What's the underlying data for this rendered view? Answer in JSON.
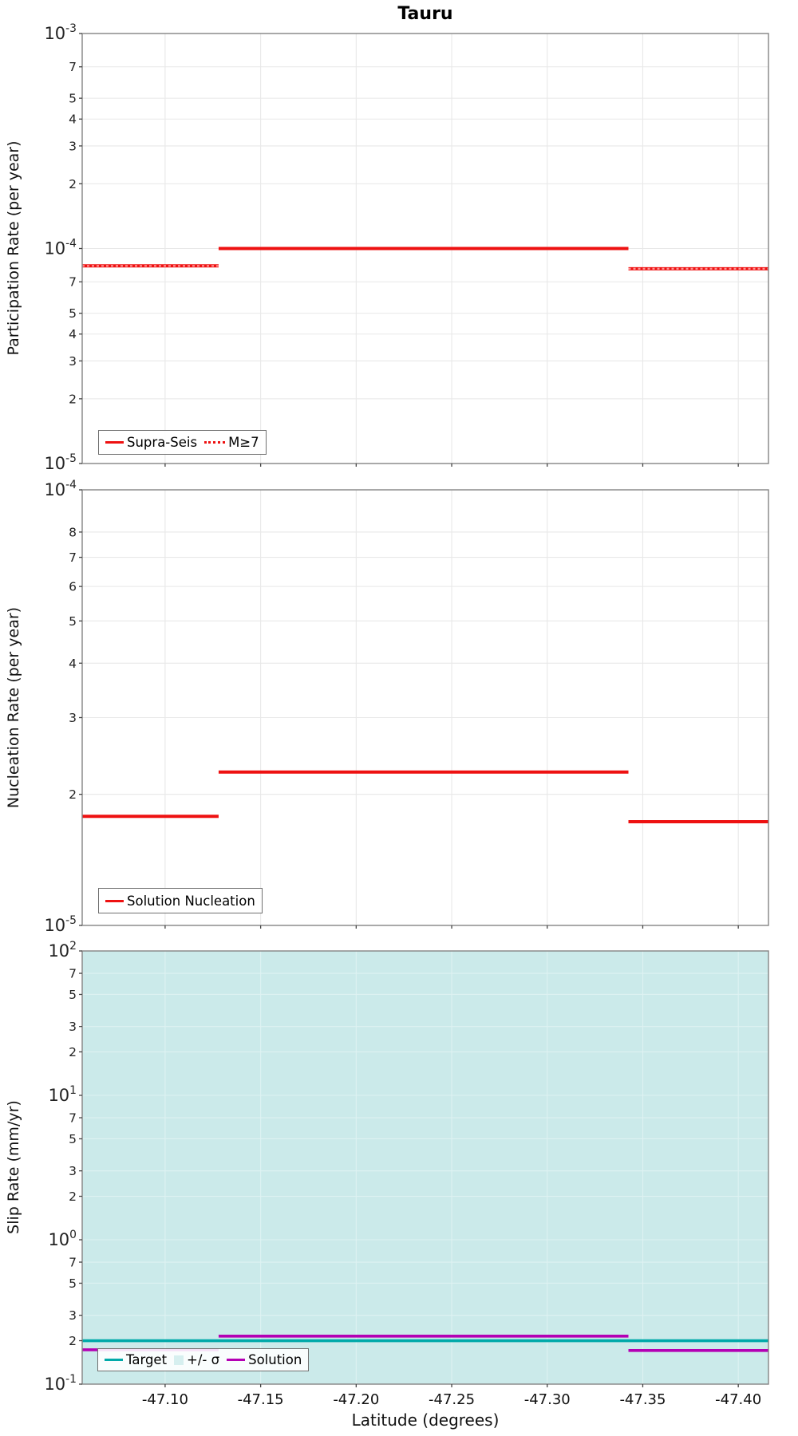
{
  "title": "Tauru",
  "xlabel": "Latitude (degrees)",
  "xticks": [
    {
      "v": -47.1,
      "label": "-47.10"
    },
    {
      "v": -47.15,
      "label": "-47.15"
    },
    {
      "v": -47.2,
      "label": "-47.20"
    },
    {
      "v": -47.25,
      "label": "-47.25"
    },
    {
      "v": -47.3,
      "label": "-47.30"
    },
    {
      "v": -47.35,
      "label": "-47.35"
    },
    {
      "v": -47.4,
      "label": "-47.40"
    }
  ],
  "chart_data": [
    {
      "type": "line",
      "name": "participation-rate",
      "ylabel": "Participation Rate (per year)",
      "yscale": "log",
      "ylim": [
        1e-05,
        0.001
      ],
      "xlim": [
        -47.0566,
        -47.4158
      ],
      "grid": true,
      "yticks": [
        {
          "v": 0.001,
          "label": "10^-3",
          "major": true
        },
        {
          "v": 0.0007,
          "label": "7"
        },
        {
          "v": 0.0005,
          "label": "5"
        },
        {
          "v": 0.0004,
          "label": "4"
        },
        {
          "v": 0.0003,
          "label": "3"
        },
        {
          "v": 0.0002,
          "label": "2"
        },
        {
          "v": 0.0001,
          "label": "10^-4",
          "major": true
        },
        {
          "v": 7e-05,
          "label": "7"
        },
        {
          "v": 5e-05,
          "label": "5"
        },
        {
          "v": 4e-05,
          "label": "4"
        },
        {
          "v": 3e-05,
          "label": "3"
        },
        {
          "v": 2e-05,
          "label": "2"
        },
        {
          "v": 1e-05,
          "label": "10^-5",
          "major": true
        }
      ],
      "series": [
        {
          "name": "Supra-Seis",
          "color": "#ee1111",
          "width": 4,
          "dash": "",
          "steps": [
            {
              "from": -47.0566,
              "to": -47.128,
              "value": 8.3e-05
            },
            {
              "from": -47.128,
              "to": -47.3425,
              "value": 0.0001
            },
            {
              "from": -47.3425,
              "to": -47.4158,
              "value": 8.05e-05
            }
          ]
        },
        {
          "name": "M≥7",
          "color": "#ff9595",
          "width": 2.2,
          "dash": "3 3",
          "steps": [
            {
              "from": -47.0566,
              "to": -47.128,
              "value": 8.3e-05
            },
            {
              "from": -47.3425,
              "to": -47.4158,
              "value": 8.05e-05
            }
          ]
        }
      ],
      "legend": {
        "items": [
          {
            "label": "Supra-Seis",
            "swatch": "line",
            "color": "#ee1111"
          },
          {
            "label": "M≥7",
            "swatch": "dotted",
            "color": "#ee1111"
          }
        ]
      }
    },
    {
      "type": "line",
      "name": "nucleation-rate",
      "ylabel": "Nucleation Rate (per year)",
      "yscale": "log",
      "ylim": [
        1e-05,
        0.0001
      ],
      "xlim": [
        -47.0566,
        -47.4158
      ],
      "grid": true,
      "yticks": [
        {
          "v": 0.0001,
          "label": "10^-4",
          "major": true
        },
        {
          "v": 8e-05,
          "label": "8"
        },
        {
          "v": 7e-05,
          "label": "7"
        },
        {
          "v": 6e-05,
          "label": "6"
        },
        {
          "v": 5e-05,
          "label": "5"
        },
        {
          "v": 4e-05,
          "label": "4"
        },
        {
          "v": 3e-05,
          "label": "3"
        },
        {
          "v": 2e-05,
          "label": "2"
        },
        {
          "v": 1e-05,
          "label": "10^-5",
          "major": true
        }
      ],
      "series": [
        {
          "name": "Solution Nucleation",
          "color": "#ee1111",
          "width": 4,
          "dash": "",
          "steps": [
            {
              "from": -47.0566,
              "to": -47.128,
              "value": 1.78e-05
            },
            {
              "from": -47.128,
              "to": -47.3425,
              "value": 2.25e-05
            },
            {
              "from": -47.3425,
              "to": -47.4158,
              "value": 1.73e-05
            }
          ]
        }
      ],
      "legend": {
        "items": [
          {
            "label": "Solution Nucleation",
            "swatch": "line",
            "color": "#ee1111"
          }
        ]
      }
    },
    {
      "type": "line",
      "name": "slip-rate",
      "ylabel": "Slip Rate (mm/yr)",
      "yscale": "log",
      "ylim": [
        0.1,
        100
      ],
      "xlim": [
        -47.0566,
        -47.4158
      ],
      "grid": true,
      "band": {
        "name": "+/- σ",
        "color": "#cbeaea",
        "from_value": 0.1,
        "to_value": 100
      },
      "yticks": [
        {
          "v": 100,
          "label": "10^2",
          "major": true
        },
        {
          "v": 70,
          "label": "7"
        },
        {
          "v": 50,
          "label": "5"
        },
        {
          "v": 30,
          "label": "3"
        },
        {
          "v": 20,
          "label": "2"
        },
        {
          "v": 10,
          "label": "10^1",
          "major": true
        },
        {
          "v": 7,
          "label": "7"
        },
        {
          "v": 5,
          "label": "5"
        },
        {
          "v": 3,
          "label": "3"
        },
        {
          "v": 2,
          "label": "2"
        },
        {
          "v": 1,
          "label": "10^0",
          "major": true
        },
        {
          "v": 0.7,
          "label": "7"
        },
        {
          "v": 0.5,
          "label": "5"
        },
        {
          "v": 0.3,
          "label": "3"
        },
        {
          "v": 0.2,
          "label": "2"
        },
        {
          "v": 0.1,
          "label": "10^-1",
          "major": true
        }
      ],
      "series": [
        {
          "name": "Target",
          "color": "#00a9a9",
          "width": 3.6,
          "dash": "",
          "steps": [
            {
              "from": -47.0566,
              "to": -47.4158,
              "value": 0.2
            }
          ]
        },
        {
          "name": "Solution",
          "color": "#b400b4",
          "width": 3.6,
          "dash": "",
          "steps": [
            {
              "from": -47.0566,
              "to": -47.128,
              "value": 0.173
            },
            {
              "from": -47.128,
              "to": -47.3425,
              "value": 0.215
            },
            {
              "from": -47.3425,
              "to": -47.4158,
              "value": 0.171
            }
          ]
        }
      ],
      "legend": {
        "items": [
          {
            "label": "Target",
            "swatch": "line",
            "color": "#00a9a9"
          },
          {
            "label": "+/- σ",
            "swatch": "square",
            "color": "#d6efef"
          },
          {
            "label": "Solution",
            "swatch": "line",
            "color": "#b400b4"
          }
        ]
      }
    }
  ]
}
